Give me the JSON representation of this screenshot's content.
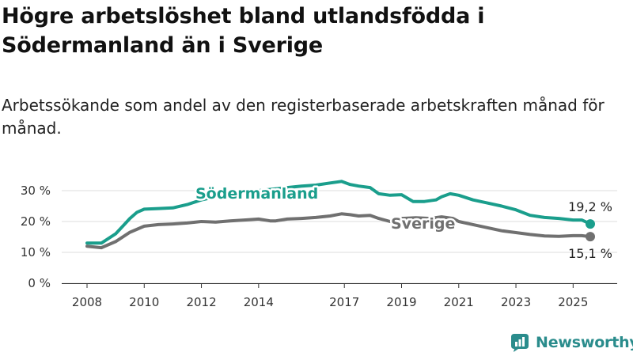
{
  "title": "Högre arbetslöshet bland utlandsfödda i Södermanland än i Sverige",
  "subtitle": "Arbetssökande som andel av den registerbaserade arbetskraften månad för månad.",
  "brand": {
    "name": "Newsworthy",
    "icon": "newsworthy-logo-icon"
  },
  "colors": {
    "sodermanland": "#1a9e8c",
    "sverige": "#707070",
    "grid": "#dddddd",
    "brand": "#2a8c8c"
  },
  "chart_data": {
    "type": "line",
    "title": "",
    "xlabel": "",
    "ylabel": "",
    "ylim": [
      0,
      30
    ],
    "xlim": [
      2007.5,
      2026.2
    ],
    "grid": true,
    "y_ticks": [
      0,
      10,
      20,
      30
    ],
    "y_tick_labels": [
      "0 %",
      "10 %",
      "20 %",
      "30 %"
    ],
    "x_ticks": [
      2008,
      2010,
      2012,
      2014,
      2017,
      2019,
      2021,
      2023,
      2025
    ],
    "x_tick_labels": [
      "2008",
      "2010",
      "2012",
      "2014",
      "2017",
      "2019",
      "2021",
      "2023",
      "2025"
    ],
    "series": [
      {
        "name": "Södermanland",
        "color": "#1a9e8c",
        "end_label": "19,2 %",
        "x": [
          2008.0,
          2008.5,
          2009.0,
          2009.25,
          2009.5,
          2009.75,
          2010.0,
          2010.5,
          2011.0,
          2011.5,
          2012.0,
          2012.5,
          2013.0,
          2013.5,
          2014.0,
          2014.5,
          2015.0,
          2015.5,
          2016.0,
          2016.5,
          2016.9,
          2017.2,
          2017.5,
          2017.9,
          2018.2,
          2018.6,
          2019.0,
          2019.4,
          2019.8,
          2020.2,
          2020.4,
          2020.7,
          2021.0,
          2021.5,
          2022.0,
          2022.5,
          2023.0,
          2023.5,
          2024.0,
          2024.5,
          2025.0,
          2025.3,
          2025.6
        ],
        "y": [
          13.0,
          13.0,
          16.0,
          18.5,
          21.0,
          23.0,
          24.0,
          24.2,
          24.4,
          25.5,
          27.0,
          28.0,
          29.0,
          29.5,
          30.0,
          30.5,
          31.0,
          31.5,
          31.8,
          32.5,
          33.0,
          32.0,
          31.5,
          31.0,
          29.0,
          28.5,
          28.7,
          26.5,
          26.5,
          27.0,
          28.0,
          29.0,
          28.5,
          27.0,
          26.0,
          25.0,
          23.8,
          22.0,
          21.3,
          21.0,
          20.5,
          20.5,
          19.2
        ]
      },
      {
        "name": "Sverige",
        "color": "#707070",
        "end_label": "15,1 %",
        "x": [
          2008.0,
          2008.5,
          2009.0,
          2009.5,
          2010.0,
          2010.5,
          2011.0,
          2011.5,
          2012.0,
          2012.5,
          2013.0,
          2013.5,
          2014.0,
          2014.4,
          2014.6,
          2015.0,
          2015.5,
          2016.0,
          2016.5,
          2016.9,
          2017.2,
          2017.5,
          2017.9,
          2018.2,
          2018.6,
          2019.0,
          2019.5,
          2020.0,
          2020.4,
          2020.8,
          2021.0,
          2021.5,
          2022.0,
          2022.5,
          2023.0,
          2023.5,
          2024.0,
          2024.5,
          2025.0,
          2025.3,
          2025.6
        ],
        "y": [
          12.0,
          11.5,
          13.5,
          16.5,
          18.5,
          19.0,
          19.2,
          19.5,
          20.0,
          19.8,
          20.2,
          20.5,
          20.8,
          20.2,
          20.2,
          20.8,
          21.0,
          21.3,
          21.8,
          22.5,
          22.2,
          21.8,
          22.0,
          21.0,
          20.0,
          21.0,
          21.2,
          21.0,
          21.5,
          21.0,
          20.0,
          19.0,
          18.0,
          17.0,
          16.4,
          15.8,
          15.3,
          15.2,
          15.4,
          15.4,
          15.1
        ]
      }
    ]
  }
}
